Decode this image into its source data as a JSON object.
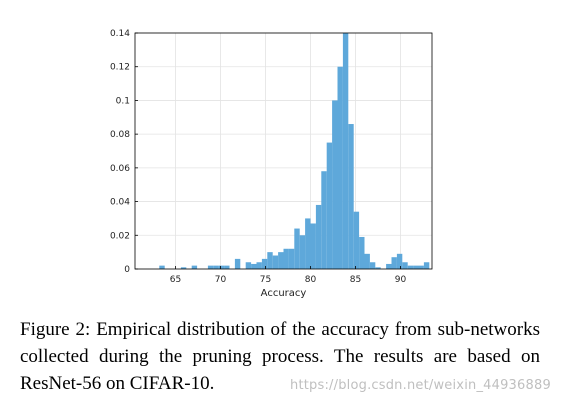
{
  "chart_data": {
    "type": "bar",
    "xlabel": "Accuracy",
    "ylabel": "",
    "xlim": [
      60.5,
      93.5
    ],
    "ylim": [
      0,
      0.14
    ],
    "x_ticks": [
      65,
      70,
      75,
      80,
      85,
      90
    ],
    "x_tick_labels": [
      "65",
      "70",
      "75",
      "80",
      "85",
      "90"
    ],
    "y_ticks": [
      0,
      0.02,
      0.04,
      0.06,
      0.08,
      0.1,
      0.12,
      0.14
    ],
    "y_tick_labels": [
      "0",
      "0.02",
      "0.04",
      "0.06",
      "0.08",
      "0.1",
      "0.12",
      "0.14"
    ],
    "grid": true,
    "bar_color": "#5ea8da",
    "bin_width": 0.6,
    "bins_start": [
      63.2,
      65.6,
      66.8,
      68.6,
      69.2,
      69.8,
      70.4,
      71.6,
      72.8,
      73.4,
      74.0,
      74.6,
      75.2,
      75.8,
      76.4,
      77.0,
      77.6,
      78.2,
      78.8,
      79.4,
      80.0,
      80.6,
      81.2,
      81.8,
      82.4,
      83.0,
      83.6,
      84.2,
      84.8,
      85.4,
      86.0,
      86.6,
      87.2,
      88.4,
      89.0,
      89.6,
      90.2,
      90.8,
      91.4,
      92.0,
      92.6
    ],
    "values": [
      0.002,
      0.001,
      0.002,
      0.002,
      0.002,
      0.002,
      0.002,
      0.006,
      0.004,
      0.003,
      0.004,
      0.006,
      0.01,
      0.008,
      0.01,
      0.012,
      0.012,
      0.024,
      0.02,
      0.03,
      0.027,
      0.038,
      0.058,
      0.075,
      0.1,
      0.12,
      0.14,
      0.086,
      0.034,
      0.019,
      0.009,
      0.004,
      0.001,
      0.003,
      0.007,
      0.009,
      0.004,
      0.002,
      0.002,
      0.002,
      0.004
    ]
  },
  "caption": "Figure 2: Empirical distribution of the accuracy from sub-networks collected during the pruning process. The results are based on ResNet-56 on CIFAR-10.",
  "watermark": "https://blog.csdn.net/weixin_44936889"
}
